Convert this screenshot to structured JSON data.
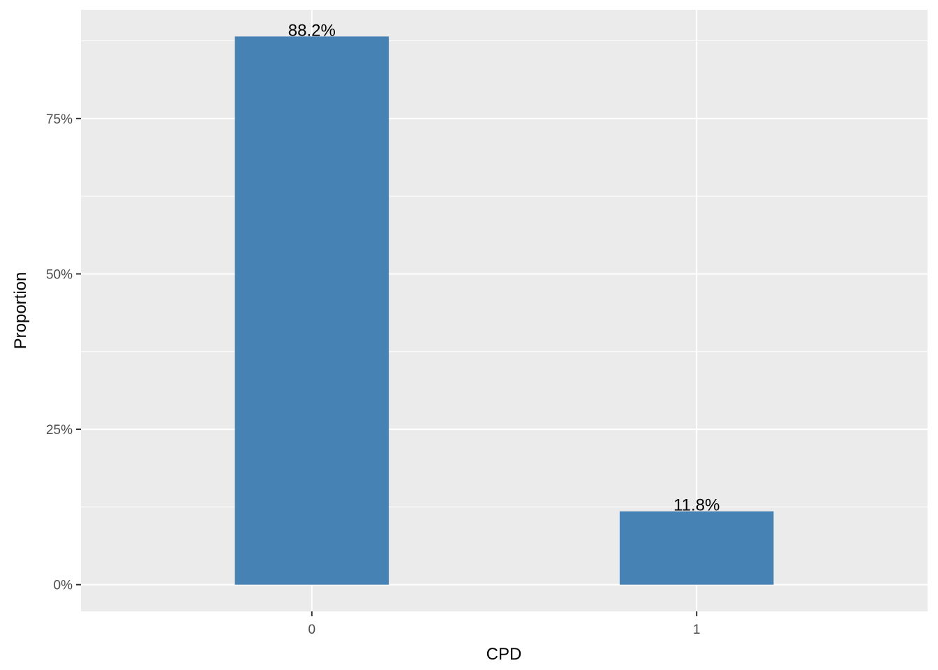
{
  "chart_data": {
    "type": "bar",
    "categories": [
      "0",
      "1"
    ],
    "values": [
      88.2,
      11.8
    ],
    "data_labels": [
      "88.2%",
      "11.8%"
    ],
    "xlabel": "CPD",
    "ylabel": "Proportion",
    "ylim": [
      -4.3,
      92.5
    ],
    "yticks": [
      0,
      25,
      50,
      75
    ],
    "ytick_labels": [
      "0%",
      "25%",
      "50%",
      "75%"
    ],
    "grid": true,
    "legend": "none",
    "colors": {
      "bar": "#4682B4",
      "panel_background": "#EBEBEB",
      "grid": "#FFFFFF",
      "tick_text": "#4D4D4D",
      "axis_title": "#000000"
    }
  }
}
